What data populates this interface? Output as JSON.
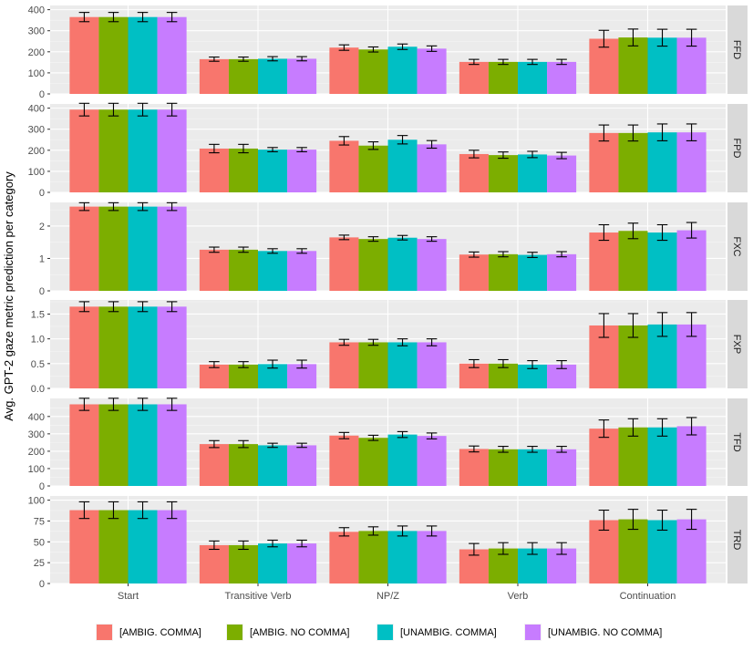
{
  "chart_data": {
    "type": "bar",
    "title": "",
    "ylabel": "Avg. GPT-2 gaze metric prediction per category",
    "xlabel": "",
    "categories": [
      "Start",
      "Transitive Verb",
      "NP/Z",
      "Verb",
      "Continuation"
    ],
    "series_names": [
      "[AMBIG. COMMA]",
      "[AMBIG. NO COMMA]",
      "[UNAMBIG. COMMA]",
      "[UNAMBIG. NO COMMA]"
    ],
    "colors": [
      "#F8766D",
      "#7CAE00",
      "#00BFC4",
      "#C77CFF"
    ],
    "legend_position": "bottom",
    "grid": true,
    "panels": [
      {
        "name": "FFD",
        "ylim": [
          0,
          400
        ],
        "yticks": [
          0,
          100,
          200,
          300,
          400
        ],
        "ytick_labels": [
          "0",
          "100",
          "200",
          "300",
          "400"
        ],
        "values": [
          [
            365,
            165,
            220,
            152,
            262
          ],
          [
            365,
            165,
            211,
            152,
            268
          ],
          [
            365,
            167,
            224,
            152,
            267
          ],
          [
            365,
            167,
            215,
            152,
            267
          ]
        ],
        "errors": [
          [
            22,
            10,
            13,
            12,
            40
          ],
          [
            22,
            10,
            12,
            12,
            40
          ],
          [
            22,
            10,
            13,
            12,
            40
          ],
          [
            22,
            10,
            13,
            12,
            40
          ]
        ]
      },
      {
        "name": "FPD",
        "ylim": [
          0,
          400
        ],
        "yticks": [
          0,
          100,
          200,
          300,
          400
        ],
        "ytick_labels": [
          "0",
          "100",
          "200",
          "300",
          "400"
        ],
        "values": [
          [
            393,
            208,
            245,
            182,
            282
          ],
          [
            393,
            208,
            222,
            177,
            282
          ],
          [
            393,
            203,
            250,
            180,
            285
          ],
          [
            393,
            203,
            228,
            175,
            285
          ]
        ],
        "errors": [
          [
            30,
            20,
            20,
            18,
            38
          ],
          [
            30,
            20,
            18,
            15,
            38
          ],
          [
            30,
            10,
            20,
            15,
            40
          ],
          [
            30,
            10,
            18,
            15,
            40
          ]
        ]
      },
      {
        "name": "FXC",
        "ylim": [
          0,
          2.6
        ],
        "yticks": [
          0,
          1,
          2
        ],
        "ytick_labels": [
          "0",
          "1",
          "2"
        ],
        "values": [
          [
            2.6,
            1.27,
            1.65,
            1.12,
            1.8
          ],
          [
            2.6,
            1.27,
            1.6,
            1.13,
            1.85
          ],
          [
            2.6,
            1.23,
            1.64,
            1.11,
            1.8
          ],
          [
            2.6,
            1.23,
            1.6,
            1.13,
            1.87
          ]
        ],
        "errors": [
          [
            0.12,
            0.08,
            0.07,
            0.08,
            0.24
          ],
          [
            0.12,
            0.08,
            0.07,
            0.08,
            0.24
          ],
          [
            0.12,
            0.07,
            0.07,
            0.08,
            0.24
          ],
          [
            0.12,
            0.07,
            0.07,
            0.08,
            0.24
          ]
        ]
      },
      {
        "name": "FXP",
        "ylim": [
          0,
          1.7
        ],
        "yticks": [
          0.0,
          0.5,
          1.0,
          1.5
        ],
        "ytick_labels": [
          "0.0",
          "0.5",
          "1.0",
          "1.5"
        ],
        "values": [
          [
            1.65,
            0.48,
            0.93,
            0.5,
            1.27
          ],
          [
            1.65,
            0.48,
            0.93,
            0.5,
            1.27
          ],
          [
            1.65,
            0.49,
            0.93,
            0.48,
            1.29
          ],
          [
            1.65,
            0.49,
            0.93,
            0.48,
            1.29
          ]
        ],
        "errors": [
          [
            0.1,
            0.06,
            0.06,
            0.08,
            0.24
          ],
          [
            0.1,
            0.06,
            0.06,
            0.08,
            0.24
          ],
          [
            0.1,
            0.08,
            0.07,
            0.08,
            0.24
          ],
          [
            0.1,
            0.08,
            0.07,
            0.08,
            0.24
          ]
        ]
      },
      {
        "name": "TFD",
        "ylim": [
          0,
          480
        ],
        "yticks": [
          0,
          100,
          200,
          300,
          400
        ],
        "ytick_labels": [
          "0",
          "100",
          "200",
          "300",
          "400"
        ],
        "values": [
          [
            470,
            241,
            290,
            213,
            330
          ],
          [
            470,
            241,
            277,
            211,
            337
          ],
          [
            470,
            234,
            296,
            211,
            337
          ],
          [
            470,
            234,
            288,
            211,
            344
          ]
        ],
        "errors": [
          [
            35,
            20,
            18,
            17,
            50
          ],
          [
            35,
            20,
            15,
            17,
            50
          ],
          [
            35,
            12,
            17,
            17,
            50
          ],
          [
            35,
            12,
            17,
            17,
            50
          ]
        ]
      },
      {
        "name": "TRD",
        "ylim": [
          0,
          100
        ],
        "yticks": [
          0,
          25,
          50,
          75,
          100
        ],
        "ytick_labels": [
          "0",
          "25",
          "50",
          "75",
          "100"
        ],
        "values": [
          [
            88,
            46,
            62,
            41,
            76
          ],
          [
            88,
            46,
            63,
            42,
            77
          ],
          [
            88,
            48,
            63,
            42,
            76
          ],
          [
            88,
            48,
            63,
            42,
            77
          ]
        ],
        "errors": [
          [
            10,
            5,
            5,
            7,
            12
          ],
          [
            10,
            5,
            5,
            7,
            12
          ],
          [
            10,
            4,
            6,
            7,
            12
          ],
          [
            10,
            4,
            6,
            7,
            12
          ]
        ]
      }
    ]
  }
}
